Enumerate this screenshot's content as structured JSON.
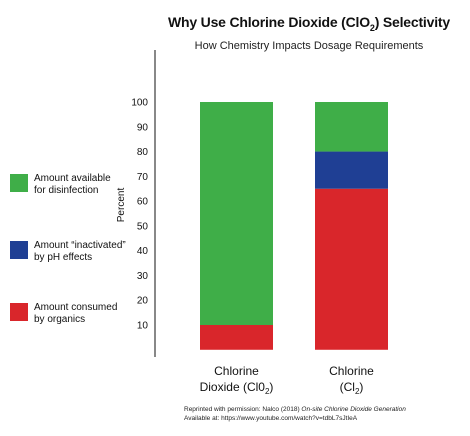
{
  "chart_data": {
    "type": "bar",
    "stacked": true,
    "title": "Why Use Chlorine Dioxide (ClO",
    "title_sub": "2",
    "title_end": ") Selectivity",
    "subtitle": "How Chemistry Impacts Dosage Requirements",
    "ylabel": "Percent",
    "ylim": [
      0,
      100
    ],
    "yticks": [
      10,
      20,
      30,
      40,
      50,
      60,
      70,
      80,
      90,
      100
    ],
    "categories": [
      {
        "line1": "Chlorine",
        "line2_main": "Dioxide (Cl0",
        "line2_sub": "2",
        "line2_end": ")"
      },
      {
        "line1": "Chlorine",
        "line2_main": "(Cl",
        "line2_sub": "2",
        "line2_end": ")"
      }
    ],
    "series": [
      {
        "key": "consumed",
        "values": [
          10,
          65
        ],
        "color": "#d9262b"
      },
      {
        "key": "inactivated",
        "values": [
          0,
          15
        ],
        "color": "#1f3f94"
      },
      {
        "key": "available",
        "values": [
          90,
          20
        ],
        "color": "#3fae48"
      }
    ],
    "legend": [
      {
        "key": "available",
        "label": "Amount available\nfor disinfection",
        "color": "#3fae48"
      },
      {
        "key": "inactivated",
        "label": "Amount “inactivated”\nby pH effects",
        "color": "#1f3f94"
      },
      {
        "key": "consumed",
        "label": "Amount consumed\nby organics",
        "color": "#d9262b"
      }
    ],
    "legend_position": "left",
    "grid": false
  },
  "credit": {
    "line1_start": "Reprinted with permission: Nalco (2018) ",
    "line1_italic": "On-site Chlorine Dioxide Generation",
    "line2": "Available at: https://www.youtube.com/watch?v=tdbL7sJtIeA"
  }
}
